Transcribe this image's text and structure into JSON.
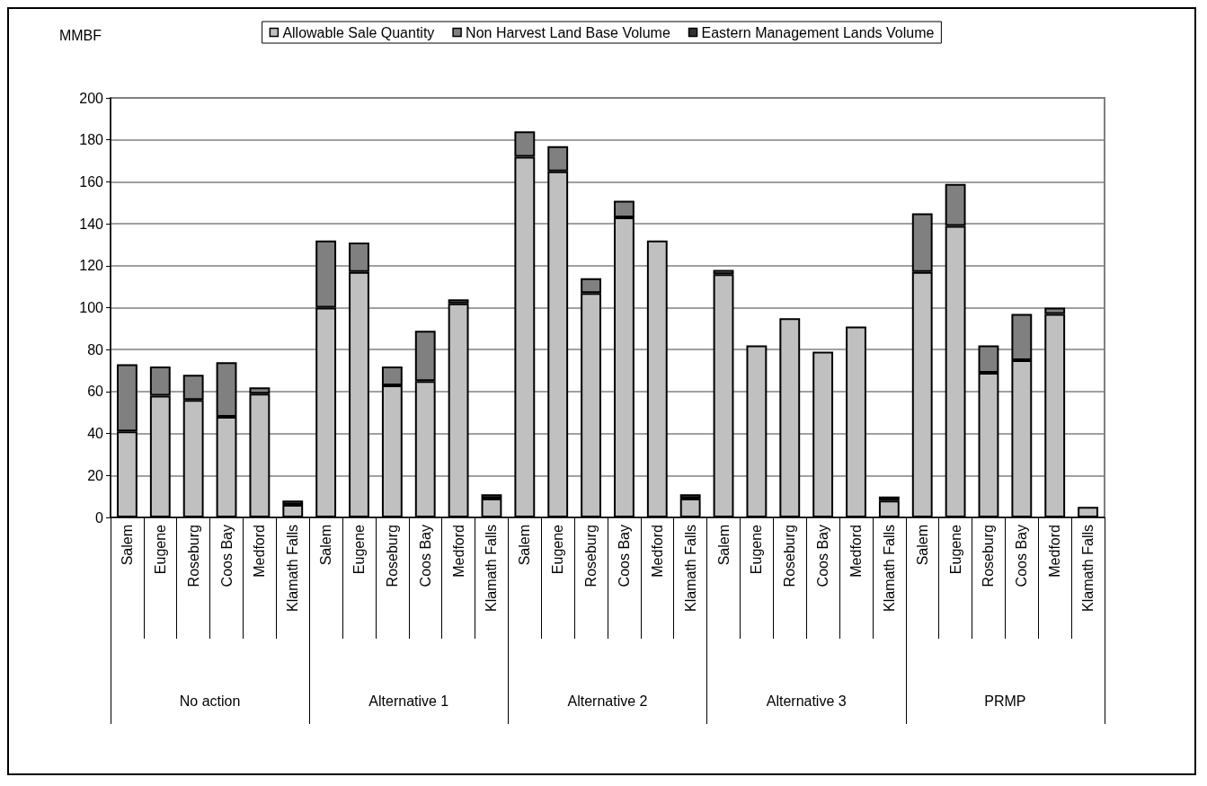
{
  "chart_data": {
    "type": "bar",
    "stacked": true,
    "ylabel": "MMBF",
    "categories": [
      "Salem",
      "Eugene",
      "Roseburg",
      "Coos Bay",
      "Medford",
      "Klamath Falls",
      "Salem",
      "Eugene",
      "Roseburg",
      "Coos Bay",
      "Medford",
      "Klamath Falls",
      "Salem",
      "Eugene",
      "Roseburg",
      "Coos Bay",
      "Medford",
      "Klamath Falls",
      "Salem",
      "Eugene",
      "Roseburg",
      "Coos Bay",
      "Medford",
      "Klamath Falls",
      "Salem",
      "Eugene",
      "Roseburg",
      "Coos Bay",
      "Medford",
      "Klamath Falls"
    ],
    "annotations": [
      "No action",
      "Alternative 1",
      "Alternative 2",
      "Alternative 3",
      "PRMP"
    ],
    "series": [
      {
        "name": "Allowable Sale Quantity",
        "color": "#c0c0c0",
        "values": [
          41,
          58,
          56,
          48,
          59,
          6,
          100,
          117,
          63,
          65,
          102,
          9,
          172,
          165,
          107,
          143,
          132,
          9,
          116,
          82,
          95,
          79,
          91,
          8,
          117,
          139,
          69,
          75,
          97,
          5
        ]
      },
      {
        "name": "Non Harvest Land Base Volume",
        "color": "#808080",
        "values": [
          32,
          14,
          12,
          26,
          3,
          0,
          32,
          14,
          9,
          24,
          2,
          0,
          12,
          12,
          7,
          8,
          0,
          0,
          2,
          0,
          0,
          0,
          0,
          0,
          28,
          20,
          13,
          22,
          3,
          0
        ]
      },
      {
        "name": "Eastern Management Lands Volume",
        "color": "#333333",
        "values": [
          0,
          0,
          0,
          0,
          0,
          2,
          0,
          0,
          0,
          0,
          0,
          2,
          0,
          0,
          0,
          0,
          0,
          2,
          0,
          0,
          0,
          0,
          0,
          2,
          0,
          0,
          0,
          0,
          0,
          0
        ]
      }
    ],
    "ylim": [
      0,
      200
    ],
    "yticks": [
      0,
      20,
      40,
      60,
      80,
      100,
      120,
      140,
      160,
      180,
      200
    ],
    "grid": "y",
    "legend": "top"
  }
}
